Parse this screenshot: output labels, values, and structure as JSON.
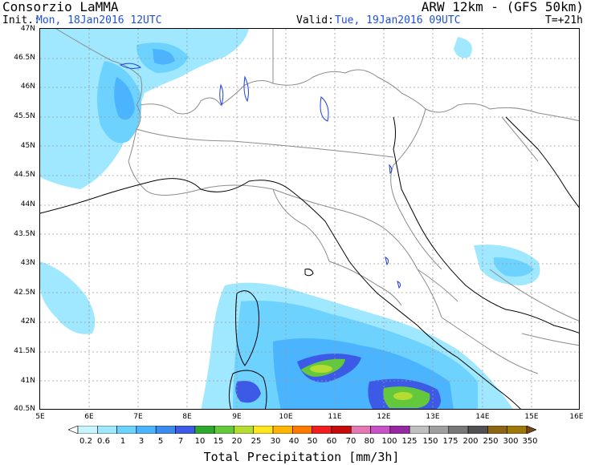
{
  "header": {
    "org": "Consorzio LaMMA",
    "model": "ARW 12km - (GFS 50km)",
    "init_label": "Init.:",
    "init_value": "Mon, 18Jan2016 12UTC",
    "valid_label": "Valid:",
    "valid_value": "Tue, 19Jan2016 09UTC",
    "lead": "T=+21h"
  },
  "map": {
    "lat_labels": [
      "47N",
      "46.5N",
      "46N",
      "45.5N",
      "45N",
      "44.5N",
      "44N",
      "43.5N",
      "43N",
      "42.5N",
      "42N",
      "41.5N",
      "41N",
      "40.5N"
    ],
    "lon_labels": [
      "5E",
      "6E",
      "7E",
      "8E",
      "9E",
      "10E",
      "11E",
      "12E",
      "13E",
      "14E",
      "15E",
      "16E"
    ]
  },
  "colorbar": {
    "title": "Total Precipitation [mm/3h]",
    "labels": [
      "0.2",
      "0.6",
      "1",
      "3",
      "5",
      "7",
      "10",
      "15",
      "20",
      "25",
      "30",
      "40",
      "50",
      "60",
      "70",
      "80",
      "100",
      "125",
      "150",
      "175",
      "200",
      "250",
      "300",
      "350"
    ],
    "colors": [
      "#ffffff",
      "#c8f5ff",
      "#9fe8ff",
      "#6ed2ff",
      "#4ab4ff",
      "#3c8cf0",
      "#3c5ae6",
      "#2da82d",
      "#64c83c",
      "#b4dc32",
      "#ffe61e",
      "#ffb400",
      "#ff7800",
      "#f01e1e",
      "#c80a0a",
      "#e678b4",
      "#c850c8",
      "#9628a0",
      "#c0c0c0",
      "#a0a0a0",
      "#787878",
      "#505050",
      "#8c6414",
      "#a0780a",
      "#784614"
    ]
  }
}
